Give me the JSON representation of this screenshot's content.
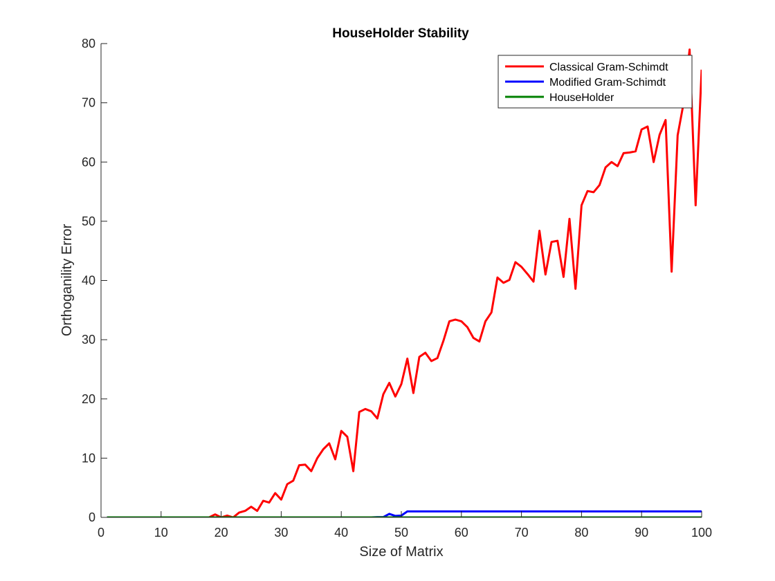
{
  "chart_data": {
    "type": "line",
    "title": "HouseHolder Stability",
    "xlabel": "Size of Matrix",
    "ylabel": "Orthoganility Error",
    "xlim": [
      0,
      100
    ],
    "ylim": [
      0,
      80
    ],
    "xticks": [
      "0",
      "10",
      "20",
      "30",
      "40",
      "50",
      "60",
      "70",
      "80",
      "90",
      "100"
    ],
    "yticks": [
      "0",
      "10",
      "20",
      "30",
      "40",
      "50",
      "60",
      "70",
      "80"
    ],
    "grid": false,
    "legend_position": "top-right",
    "x": [
      1,
      2,
      3,
      4,
      5,
      6,
      7,
      8,
      9,
      10,
      11,
      12,
      13,
      14,
      15,
      16,
      17,
      18,
      19,
      20,
      21,
      22,
      23,
      24,
      25,
      26,
      27,
      28,
      29,
      30,
      31,
      32,
      33,
      34,
      35,
      36,
      37,
      38,
      39,
      40,
      41,
      42,
      43,
      44,
      45,
      46,
      47,
      48,
      49,
      50,
      51,
      52,
      53,
      54,
      55,
      56,
      57,
      58,
      59,
      60,
      61,
      62,
      63,
      64,
      65,
      66,
      67,
      68,
      69,
      70,
      71,
      72,
      73,
      74,
      75,
      76,
      77,
      78,
      79,
      80,
      81,
      82,
      83,
      84,
      85,
      86,
      87,
      88,
      89,
      90,
      91,
      92,
      93,
      94,
      95,
      96,
      97,
      98,
      99,
      100
    ],
    "series": [
      {
        "name": "Classical Gram-Schimdt",
        "color": "#ff0000",
        "values": [
          0,
          0,
          0,
          0,
          0,
          0,
          0,
          0,
          0,
          0,
          0,
          0,
          0,
          0,
          0,
          0,
          0,
          0,
          0.5,
          0,
          0.3,
          0,
          0.8,
          1.1,
          1.8,
          1.1,
          2.8,
          2.5,
          4.1,
          3.0,
          5.6,
          6.2,
          8.8,
          8.9,
          7.8,
          10.0,
          11.5,
          12.5,
          9.8,
          14.6,
          13.6,
          7.8,
          17.8,
          18.3,
          17.9,
          16.7,
          20.8,
          22.7,
          20.4,
          22.5,
          26.8,
          21.0,
          27.1,
          27.8,
          26.4,
          26.9,
          29.8,
          33.1,
          33.4,
          33.1,
          32.1,
          30.3,
          29.7,
          33.1,
          34.6,
          40.5,
          39.6,
          40.1,
          43.1,
          42.3,
          41.1,
          39.8,
          48.4,
          41.0,
          46.5,
          46.7,
          40.6,
          50.4,
          38.6,
          52.7,
          55.1,
          54.9,
          56.1,
          59.1,
          60.0,
          59.3,
          61.5,
          61.6,
          61.8,
          65.5,
          66.0,
          60.0,
          64.6,
          67.1,
          41.5,
          64.5,
          70.0,
          79.0,
          52.7,
          75.6
        ]
      },
      {
        "name": "Modified Gram-Schimdt",
        "color": "#0000ff",
        "values": [
          0,
          0,
          0,
          0,
          0,
          0,
          0,
          0,
          0,
          0,
          0,
          0,
          0,
          0,
          0,
          0,
          0,
          0,
          0,
          0,
          0,
          0,
          0,
          0,
          0,
          0,
          0,
          0,
          0,
          0,
          0,
          0,
          0,
          0,
          0,
          0,
          0,
          0,
          0,
          0,
          0,
          0,
          0,
          0,
          0,
          0.05,
          0.05,
          0.6,
          0.25,
          0.3,
          1.0,
          1.0,
          1.0,
          1.0,
          1.0,
          1.0,
          1.0,
          1.0,
          1.0,
          1.0,
          1.0,
          1.0,
          1.0,
          1.0,
          1.0,
          1.0,
          1.0,
          1.0,
          1.0,
          1.0,
          1.0,
          1.0,
          1.0,
          1.0,
          1.0,
          1.0,
          1.0,
          1.0,
          1.0,
          1.0,
          1.0,
          1.0,
          1.0,
          1.0,
          1.0,
          1.0,
          1.0,
          1.0,
          1.0,
          1.0,
          1.0,
          1.0,
          1.0,
          1.0,
          1.0,
          1.0,
          1.0,
          1.0,
          1.0,
          1.0
        ]
      },
      {
        "name": "HouseHolder",
        "color": "#008000",
        "values": [
          0,
          0,
          0,
          0,
          0,
          0,
          0,
          0,
          0,
          0,
          0,
          0,
          0,
          0,
          0,
          0,
          0,
          0,
          0,
          0,
          0,
          0,
          0,
          0,
          0,
          0,
          0,
          0,
          0,
          0,
          0,
          0,
          0,
          0,
          0,
          0,
          0,
          0,
          0,
          0,
          0,
          0,
          0,
          0,
          0,
          0,
          0,
          0,
          0,
          0,
          0,
          0,
          0,
          0,
          0,
          0,
          0,
          0,
          0,
          0,
          0,
          0,
          0,
          0,
          0,
          0,
          0,
          0,
          0,
          0,
          0,
          0,
          0,
          0,
          0,
          0,
          0,
          0,
          0,
          0,
          0,
          0,
          0,
          0,
          0,
          0,
          0,
          0,
          0,
          0,
          0,
          0,
          0,
          0,
          0,
          0,
          0,
          0,
          0,
          0
        ]
      }
    ]
  }
}
